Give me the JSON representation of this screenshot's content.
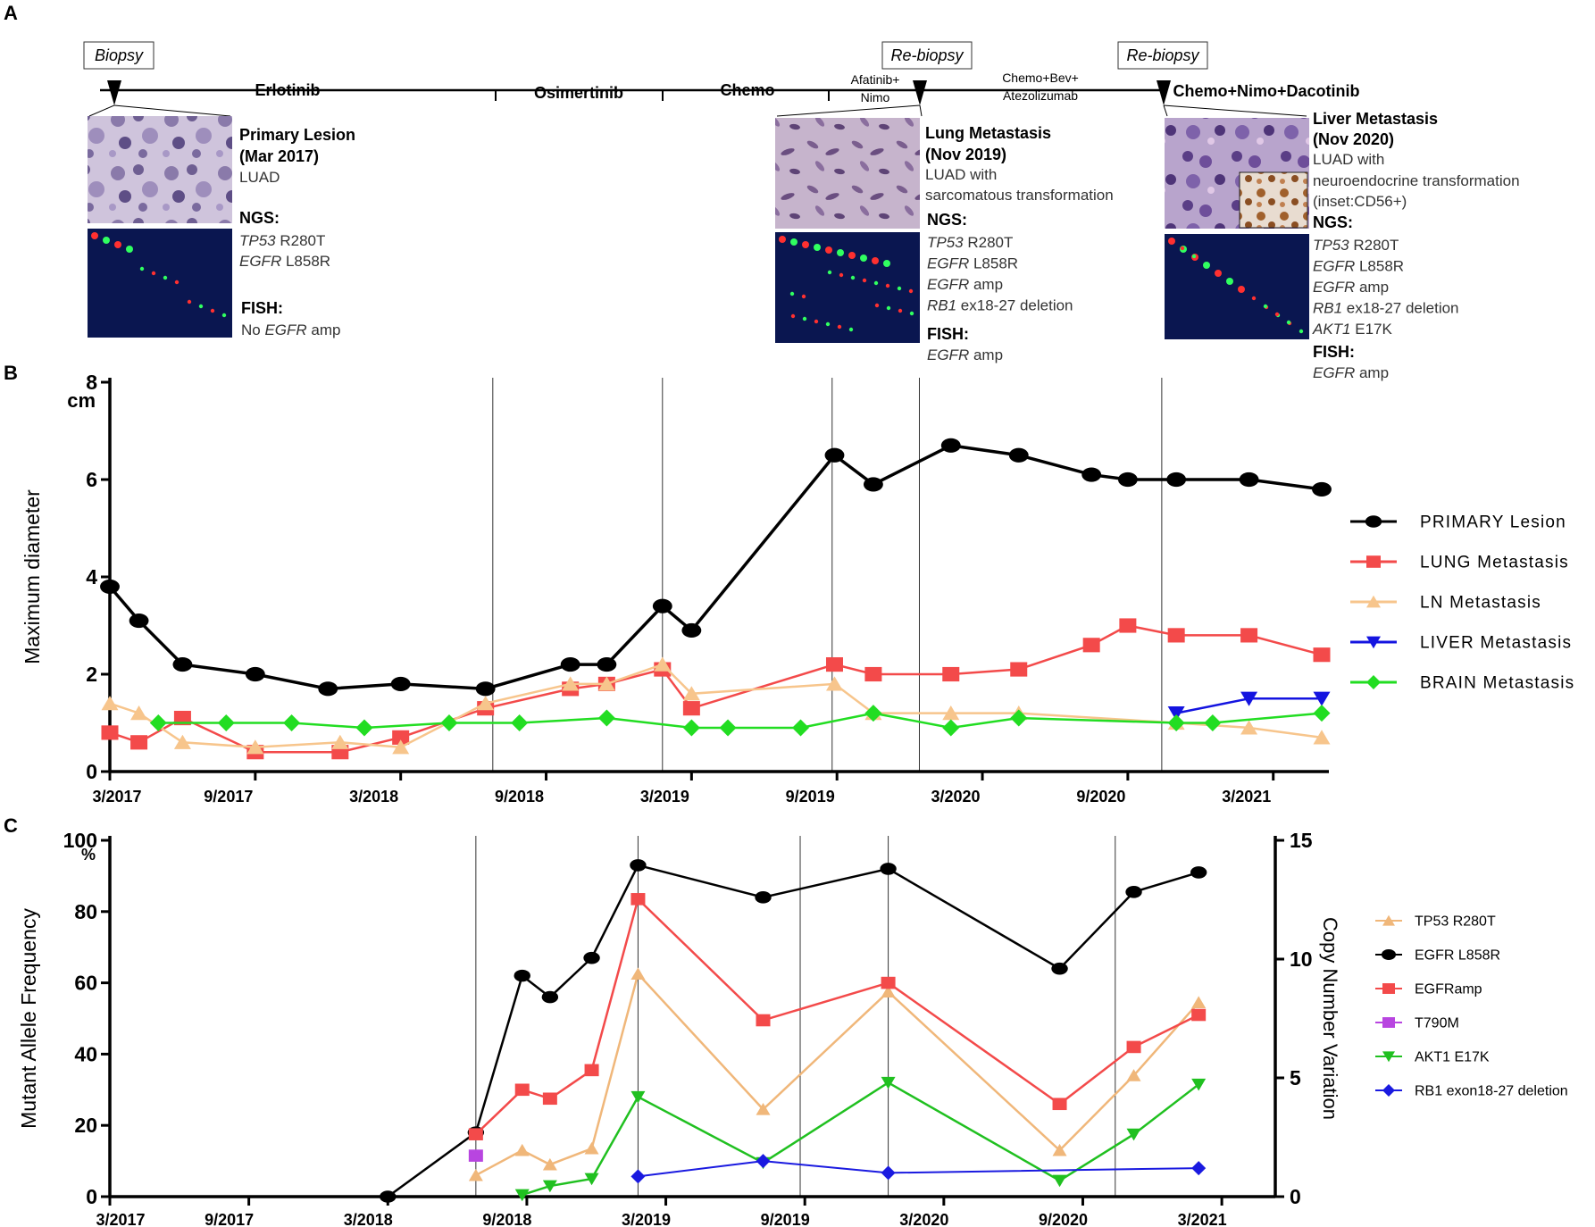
{
  "panel_labels": {
    "a": "A",
    "b": "B",
    "c": "C"
  },
  "timeline": {
    "biopsy_label": "Biopsy",
    "rebiopsy1_label": "Re-biopsy",
    "rebiopsy2_label": "Re-biopsy",
    "phases": {
      "erlotinib": "Erlotinib",
      "osimertinib": "Osimertinib",
      "chemo": "Chemo",
      "afatinib_line1": "Afatinib+",
      "afatinib_line2": "Nimo",
      "chemo_bev_line1": "Chemo+Bev+",
      "chemo_bev_line2": "Atezolizumab",
      "chemo_nimo_daco": "Chemo+Nimo+Dacotinib"
    }
  },
  "findings": {
    "primary": {
      "title1": "Primary Lesion",
      "title2": "(Mar 2017)",
      "histology": "LUAD",
      "ngs_label": "NGS:",
      "ngs": [
        {
          "gene": "TP53",
          "rest": " R280T"
        },
        {
          "gene": "EGFR",
          "rest": " L858R"
        }
      ],
      "fish_label": "FISH:",
      "fish_prefix": "No ",
      "fish_gene": "EGFR",
      "fish_suffix": " amp"
    },
    "lung": {
      "title1": "Lung Metastasis",
      "title2": "(Nov 2019)",
      "histology1": "LUAD with",
      "histology2": "sarcomatous transformation",
      "ngs_label": "NGS:",
      "ngs": [
        {
          "gene": "TP53",
          "rest": " R280T"
        },
        {
          "gene": "EGFR",
          "rest": " L858R"
        },
        {
          "gene": "EGFR",
          "rest": " amp"
        },
        {
          "gene": "RB1",
          "rest": " ex18-27 deletion"
        }
      ],
      "fish_label": "FISH:",
      "fish_gene": "EGFR",
      "fish_suffix": " amp"
    },
    "liver": {
      "title1": "Liver Metastasis",
      "title2": "(Nov 2020)",
      "histology1": "LUAD with",
      "histology2": "neuroendocrine  transformation",
      "histology3": "(inset:CD56+)",
      "ngs_label": "NGS:",
      "ngs": [
        {
          "gene": "TP53",
          "rest": " R280T"
        },
        {
          "gene": "EGFR",
          "rest": " L858R"
        },
        {
          "gene": "EGFR",
          "rest": " amp"
        },
        {
          "gene": "RB1",
          "rest": " ex18-27 deletion"
        },
        {
          "gene": "AKT1",
          "rest": " E17K"
        }
      ],
      "fish_label": "FISH:",
      "fish_gene": "EGFR",
      "fish_suffix": " amp"
    }
  },
  "colors": {
    "primary": "#000000",
    "lung": "#f34a4a",
    "ln": "#f7c58c",
    "liver": "#1414e0",
    "brain": "#22dd22",
    "tp53": "#f0b77a",
    "egfr_l858r": "#000000",
    "egfr_amp": "#f34a4a",
    "t790m": "#b845e0",
    "akt1": "#20c020",
    "rb1": "#1a1ae0"
  },
  "chart_data": [
    {
      "panel": "B",
      "type": "line",
      "title": "",
      "xlabel": "",
      "ylabel": "Maximum diameter",
      "y_unit": "cm",
      "x_unit": "months since 3/2017",
      "xlim": [
        0,
        50
      ],
      "ylim": [
        0,
        8
      ],
      "yticks": [
        0,
        2,
        4,
        6,
        8
      ],
      "xtick_labels": [
        {
          "m": 0,
          "label": "3/2017"
        },
        {
          "m": 6,
          "label": "9/2017"
        },
        {
          "m": 12,
          "label": "3/2018"
        },
        {
          "m": 18,
          "label": "9/2018"
        },
        {
          "m": 24,
          "label": "3/2019"
        },
        {
          "m": 30,
          "label": "9/2019"
        },
        {
          "m": 36,
          "label": "3/2020"
        },
        {
          "m": 42,
          "label": "9/2020"
        },
        {
          "m": 48,
          "label": "3/2021"
        }
      ],
      "vlines": [
        15.8,
        22.8,
        29.8,
        33.4,
        43.4
      ],
      "series": [
        {
          "name": "PRIMARY Lesion",
          "marker": "circle",
          "color": "#000000",
          "points": [
            [
              0,
              3.8
            ],
            [
              1.2,
              3.1
            ],
            [
              3,
              2.2
            ],
            [
              6,
              2.0
            ],
            [
              9,
              1.7
            ],
            [
              12,
              1.8
            ],
            [
              15.5,
              1.7
            ],
            [
              19,
              2.2
            ],
            [
              20.5,
              2.2
            ],
            [
              22.8,
              3.4
            ],
            [
              24,
              2.9
            ],
            [
              29.9,
              6.5
            ],
            [
              31.5,
              5.9
            ],
            [
              34.7,
              6.7
            ],
            [
              37.5,
              6.5
            ],
            [
              40.5,
              6.1
            ],
            [
              42,
              6.0
            ],
            [
              44,
              6.0
            ],
            [
              47,
              6.0
            ],
            [
              50,
              5.8
            ]
          ]
        },
        {
          "name": "LUNG Metastasis",
          "marker": "square",
          "color": "#f34a4a",
          "points": [
            [
              0,
              0.8
            ],
            [
              1.2,
              0.6
            ],
            [
              3,
              1.1
            ],
            [
              6,
              0.4
            ],
            [
              9.5,
              0.4
            ],
            [
              12,
              0.7
            ],
            [
              15.5,
              1.3
            ],
            [
              19,
              1.7
            ],
            [
              20.5,
              1.8
            ],
            [
              22.8,
              2.1
            ],
            [
              24,
              1.3
            ],
            [
              29.9,
              2.2
            ],
            [
              31.5,
              2.0
            ],
            [
              34.7,
              2.0
            ],
            [
              37.5,
              2.1
            ],
            [
              40.5,
              2.6
            ],
            [
              42,
              3.0
            ],
            [
              44,
              2.8
            ],
            [
              47,
              2.8
            ],
            [
              50,
              2.4
            ]
          ]
        },
        {
          "name": "LN Metastasis",
          "marker": "triangle-up",
          "color": "#f7c58c",
          "points": [
            [
              0,
              1.4
            ],
            [
              1.2,
              1.2
            ],
            [
              3,
              0.6
            ],
            [
              6,
              0.5
            ],
            [
              9.5,
              0.6
            ],
            [
              12,
              0.5
            ],
            [
              15.5,
              1.4
            ],
            [
              19,
              1.8
            ],
            [
              20.5,
              1.8
            ],
            [
              22.8,
              2.2
            ],
            [
              24,
              1.6
            ],
            [
              29.9,
              1.8
            ],
            [
              31.5,
              1.2
            ],
            [
              34.7,
              1.2
            ],
            [
              37.5,
              1.2
            ],
            [
              44,
              1.0
            ],
            [
              47,
              0.9
            ],
            [
              50,
              0.7
            ]
          ]
        },
        {
          "name": "LIVER Metastasis",
          "marker": "triangle-down",
          "color": "#1414e0",
          "points": [
            [
              44,
              1.2
            ],
            [
              47,
              1.5
            ],
            [
              50,
              1.5
            ]
          ]
        },
        {
          "name": "BRAIN Metastasis",
          "marker": "diamond",
          "color": "#22dd22",
          "points": [
            [
              2,
              1.0
            ],
            [
              4.8,
              1.0
            ],
            [
              7.5,
              1.0
            ],
            [
              10.5,
              0.9
            ],
            [
              14,
              1.0
            ],
            [
              16.9,
              1.0
            ],
            [
              20.5,
              1.1
            ],
            [
              24,
              0.9
            ],
            [
              25.5,
              0.9
            ],
            [
              28.5,
              0.9
            ],
            [
              31.5,
              1.2
            ],
            [
              34.7,
              0.9
            ],
            [
              37.5,
              1.1
            ],
            [
              44,
              1.0
            ],
            [
              45.5,
              1.0
            ],
            [
              50,
              1.2
            ]
          ]
        }
      ]
    },
    {
      "panel": "C",
      "type": "line",
      "title": "",
      "xlabel": "",
      "ylabel": "Mutant Allele Frequency",
      "y_unit": "%",
      "ylabel_right": "Copy Number Variation",
      "x_unit": "months since 3/2017",
      "xlim": [
        0,
        50
      ],
      "ylim": [
        0,
        100
      ],
      "yticks": [
        0,
        20,
        40,
        60,
        80,
        100
      ],
      "ylim_right": [
        0,
        15
      ],
      "yticks_right": [
        0,
        5,
        10,
        15
      ],
      "xtick_labels": [
        {
          "m": 0,
          "label": "3/2017"
        },
        {
          "m": 6,
          "label": "9/2017"
        },
        {
          "m": 12,
          "label": "3/2018"
        },
        {
          "m": 18,
          "label": "9/2018"
        },
        {
          "m": 24,
          "label": "3/2019"
        },
        {
          "m": 30,
          "label": "9/2019"
        },
        {
          "m": 36,
          "label": "3/2020"
        },
        {
          "m": 42,
          "label": "9/2020"
        },
        {
          "m": 48,
          "label": "3/2021"
        }
      ],
      "vlines": [
        15.8,
        22.8,
        29.8,
        33.6,
        43.4
      ],
      "series": [
        {
          "name": "TP53 R280T",
          "marker": "triangle-up",
          "color": "#f0b77a",
          "axis": "left",
          "points": [
            [
              15.8,
              6
            ],
            [
              17.8,
              13
            ],
            [
              19,
              9
            ],
            [
              20.8,
              13.5
            ],
            [
              22.8,
              62.5
            ],
            [
              28.2,
              24.5
            ],
            [
              33.6,
              57.5
            ],
            [
              41,
              13
            ],
            [
              44.2,
              34
            ],
            [
              47,
              54.5
            ]
          ]
        },
        {
          "name": "EGFR L858R",
          "marker": "circle",
          "color": "#000000",
          "axis": "left",
          "points": [
            [
              12,
              0
            ],
            [
              15.8,
              18
            ],
            [
              17.8,
              62
            ],
            [
              19,
              56
            ],
            [
              20.8,
              67
            ],
            [
              22.8,
              93
            ],
            [
              28.2,
              84
            ],
            [
              33.6,
              92
            ],
            [
              41,
              64
            ],
            [
              44.2,
              85.5
            ],
            [
              47,
              91
            ]
          ]
        },
        {
          "name": "EGFRamp",
          "marker": "square",
          "color": "#f34a4a",
          "axis": "left",
          "points": [
            [
              15.8,
              17.5
            ],
            [
              17.8,
              30
            ],
            [
              19,
              27.5
            ],
            [
              20.8,
              35.5
            ],
            [
              22.8,
              83.5
            ],
            [
              28.2,
              49.5
            ],
            [
              33.6,
              60
            ],
            [
              41,
              26
            ],
            [
              44.2,
              42
            ],
            [
              47,
              51
            ]
          ]
        },
        {
          "name": "T790M",
          "marker": "square",
          "color": "#b845e0",
          "axis": "left",
          "points": [
            [
              15.8,
              11.5
            ]
          ]
        },
        {
          "name": "AKT1 E17K",
          "marker": "triangle-down",
          "color": "#20c020",
          "axis": "left",
          "points": [
            [
              17.8,
              0.5
            ],
            [
              19,
              3
            ],
            [
              20.8,
              5
            ],
            [
              22.8,
              28
            ],
            [
              28.2,
              9.5
            ],
            [
              33.6,
              32
            ],
            [
              41,
              4.5
            ],
            [
              44.2,
              17.5
            ],
            [
              47,
              31.5
            ]
          ]
        },
        {
          "name": "RB1 exon18-27 deletion",
          "marker": "diamond",
          "color": "#1a1ae0",
          "axis": "right",
          "points": [
            [
              22.8,
              0.85
            ],
            [
              28.2,
              1.5
            ],
            [
              33.6,
              1.0
            ],
            [
              47,
              1.2
            ]
          ]
        }
      ]
    }
  ]
}
